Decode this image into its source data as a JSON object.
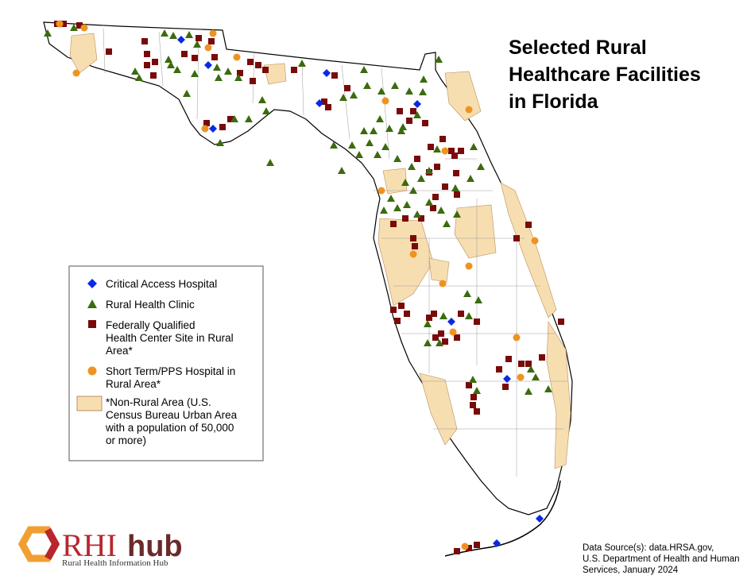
{
  "title_lines": [
    "Selected Rural",
    "Healthcare Facilities",
    "in Florida"
  ],
  "legend": {
    "items": [
      {
        "lines": [
          "Critical Access Hospital"
        ]
      },
      {
        "lines": [
          "Rural Health Clinic"
        ]
      },
      {
        "lines": [
          "Federally Qualified",
          "Health Center Site in Rural",
          "Area*"
        ]
      },
      {
        "lines": [
          "Short Term/PPS Hospital in",
          "Rural Area*"
        ]
      },
      {
        "lines": [
          "*Non-Rural Area (U.S.",
          "Census Bureau Urban Area",
          "with a population of 50,000",
          "or more)"
        ]
      }
    ]
  },
  "source_lines": [
    "Data Source(s): data.HRSA.gov,",
    "U.S. Department of Health and Human",
    "Services, January 2024"
  ],
  "logo": {
    "rhi": "RHI",
    "hub": "hub",
    "subtitle": "Rural Health Information Hub"
  }
}
